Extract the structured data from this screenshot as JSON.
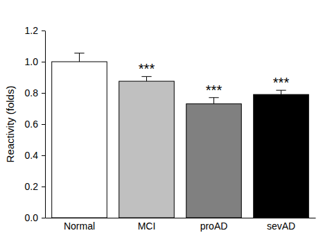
{
  "chart_data": {
    "type": "bar",
    "y_label": "Reactivity (folds)",
    "categories": [
      "Normal",
      "MCI",
      "proAD",
      "sevAD"
    ],
    "values": [
      1.0,
      0.875,
      0.73,
      0.79
    ],
    "errors": [
      0.055,
      0.03,
      0.04,
      0.027
    ],
    "annotations": [
      null,
      "***",
      "***",
      "***"
    ],
    "colors": [
      "#ffffff",
      "#c0c0c0",
      "#808080",
      "#000000"
    ],
    "ylim": [
      0,
      1.2
    ],
    "yticks": [
      {
        "value": 0,
        "label": "0.0"
      },
      {
        "value": 0.2,
        "label": "0.2"
      },
      {
        "value": 0.4,
        "label": "0.4"
      },
      {
        "value": 0.6,
        "label": "0.6"
      },
      {
        "value": 0.8,
        "label": "0.8"
      },
      {
        "value": 1.0,
        "label": "1.0"
      },
      {
        "value": 1.2,
        "label": "1.2"
      }
    ],
    "grid": false
  }
}
